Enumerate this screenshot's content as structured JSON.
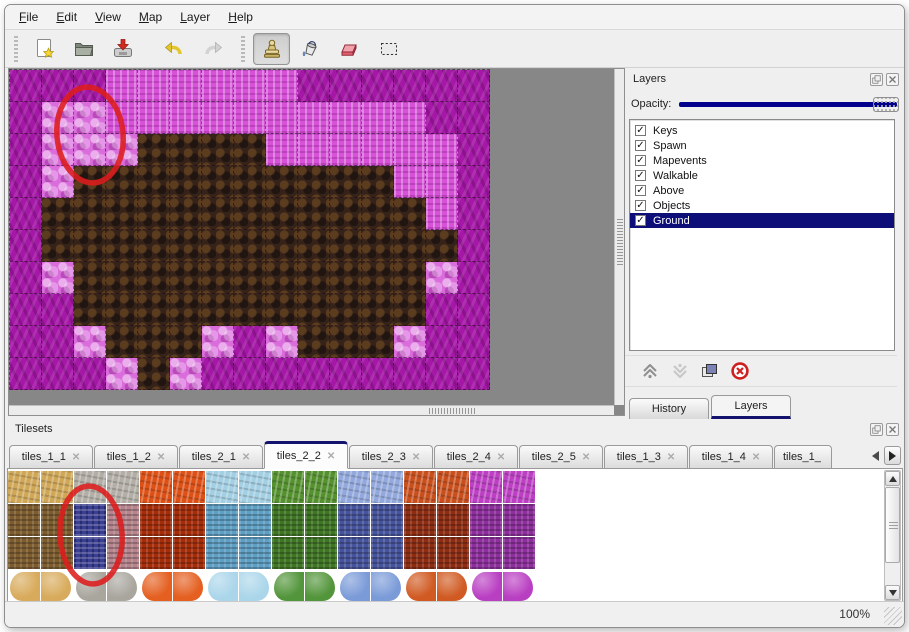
{
  "menu": {
    "items": [
      {
        "label": "File"
      },
      {
        "label": "Edit"
      },
      {
        "label": "View"
      },
      {
        "label": "Map"
      },
      {
        "label": "Layer"
      },
      {
        "label": "Help"
      }
    ]
  },
  "toolbar": {
    "buttons": [
      {
        "name": "new"
      },
      {
        "name": "open"
      },
      {
        "name": "save"
      },
      {
        "name": "undo"
      },
      {
        "name": "redo"
      },
      {
        "name": "stamp",
        "active": true
      },
      {
        "name": "fill"
      },
      {
        "name": "eraser"
      },
      {
        "name": "rect-select"
      }
    ]
  },
  "map": {
    "tile_size": 32,
    "columns": 15,
    "rows": 10,
    "tiles": {
      "M": {
        "name": "dark-magenta-scales",
        "color": "#a517a7"
      },
      "P": {
        "name": "bright-pink-pillars",
        "color": "#d653d8"
      },
      "L": {
        "name": "light-pink-rocks",
        "color": "#da6cdc"
      },
      "B": {
        "name": "dark-brown-scales",
        "color": "#35231a"
      }
    },
    "grid": [
      "MMMPPPPPPMMMMMM",
      "MLLPPPPPPPPPPMM",
      "MLLLBBBBPPPPPPM",
      "MLBBBBBBBBBBPPM",
      "MBBBBBBBBBBBBPM",
      "MBBBBBBBBBBBBBM",
      "MLBBBBBBBBBBBLM",
      "MMBBBBBBBBBBBMM",
      "MMLBBBLMLBBBLMM",
      "MMMLBLMMMMMMMMM"
    ],
    "annotation": {
      "shape": "ellipse",
      "color": "#dd1c1c"
    }
  },
  "layers_panel": {
    "title": "Layers",
    "opacity_label": "Opacity:",
    "opacity_percent": 100,
    "layers": [
      {
        "label": "Keys",
        "checked": true
      },
      {
        "label": "Spawn",
        "checked": true
      },
      {
        "label": "Mapevents",
        "checked": true
      },
      {
        "label": "Walkable",
        "checked": true
      },
      {
        "label": "Above",
        "checked": true
      },
      {
        "label": "Objects",
        "checked": true
      },
      {
        "label": "Ground",
        "checked": true,
        "selected": true
      }
    ],
    "buttons": [
      {
        "name": "raise-layer"
      },
      {
        "name": "lower-layer"
      },
      {
        "name": "duplicate-layer"
      },
      {
        "name": "delete-layer"
      }
    ],
    "tabs": [
      {
        "label": "History"
      },
      {
        "label": "Layers",
        "active": true
      }
    ],
    "accent_color": "#0e0e78"
  },
  "tilesets_panel": {
    "title": "Tilesets",
    "tabs": [
      {
        "label": "tiles_1_1"
      },
      {
        "label": "tiles_1_2"
      },
      {
        "label": "tiles_2_1"
      },
      {
        "label": "tiles_2_2",
        "active": true
      },
      {
        "label": "tiles_2_3"
      },
      {
        "label": "tiles_2_4"
      },
      {
        "label": "tiles_2_5"
      },
      {
        "label": "tiles_1_3"
      },
      {
        "label": "tiles_1_4"
      },
      {
        "label": "tiles_1_",
        "truncated": true
      }
    ],
    "groups": [
      {
        "name": "sand",
        "top": "#cfa757",
        "mid": "#7d5c2e",
        "blob": "#d8ab5c"
      },
      {
        "name": "stone",
        "top": "#b3afa7",
        "mid": "#b5848c",
        "blob": "#a9a69e"
      },
      {
        "name": "lava",
        "top": "#dd5016",
        "mid": "#a62d09",
        "blob": "#e45f20"
      },
      {
        "name": "ice",
        "top": "#a3cfe3",
        "mid": "#5f9fc4",
        "blob": "#abd6ea"
      },
      {
        "name": "vine",
        "top": "#55912f",
        "mid": "#3f7623",
        "blob": "#52953a"
      },
      {
        "name": "crystal",
        "top": "#93a9dd",
        "mid": "#46549e",
        "blob": "#7b9bd8"
      },
      {
        "name": "ember",
        "top": "#c94f1d",
        "mid": "#8f2d12",
        "blob": "#d05a22"
      },
      {
        "name": "violet",
        "top": "#bd3fc4",
        "mid": "#8e2f9e",
        "blob": "#b93fc2"
      }
    ],
    "selected_tile": {
      "column": 2,
      "rows": [
        1,
        2
      ],
      "highlight": "#3a3f91"
    },
    "annotation": {
      "shape": "ellipse",
      "color": "#dd1c1c"
    }
  },
  "status_bar": {
    "zoom": "100%"
  }
}
